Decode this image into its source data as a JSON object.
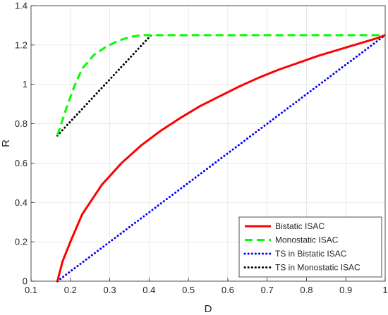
{
  "chart_data": {
    "type": "line",
    "title": "",
    "xlabel": "D",
    "ylabel": "R",
    "xlim": [
      0.1,
      1.0
    ],
    "ylim": [
      0,
      1.4
    ],
    "xticks": [
      0.1,
      0.2,
      0.3,
      0.4,
      0.5,
      0.6,
      0.7,
      0.8,
      0.9,
      1.0
    ],
    "xtick_labels": [
      "0.1",
      "0.2",
      "0.3",
      "0.4",
      "0.5",
      "0.6",
      "0.7",
      "0.8",
      "0.9",
      "1"
    ],
    "yticks": [
      0,
      0.2,
      0.4,
      0.6,
      0.8,
      1.0,
      1.2,
      1.4
    ],
    "ytick_labels": [
      "0",
      "0.2",
      "0.4",
      "0.6",
      "0.8",
      "1",
      "1.2",
      "1.4"
    ],
    "grid": true,
    "legend_position": "bottom-right",
    "series": [
      {
        "name": "Bistatic ISAC",
        "color": "#ff0000",
        "style": "solid",
        "x": [
          0.167,
          0.18,
          0.2,
          0.23,
          0.28,
          0.33,
          0.38,
          0.43,
          0.48,
          0.53,
          0.58,
          0.63,
          0.68,
          0.73,
          0.78,
          0.83,
          0.88,
          0.93,
          0.98,
          1.0
        ],
        "y": [
          0.0,
          0.1,
          0.2,
          0.34,
          0.49,
          0.6,
          0.69,
          0.765,
          0.83,
          0.89,
          0.94,
          0.99,
          1.035,
          1.075,
          1.11,
          1.145,
          1.175,
          1.205,
          1.235,
          1.25
        ]
      },
      {
        "name": "Monostatic ISAC",
        "color": "#00ff00",
        "style": "dashed",
        "x": [
          0.167,
          0.19,
          0.21,
          0.23,
          0.26,
          0.29,
          0.32,
          0.35,
          0.38,
          0.41,
          0.5,
          0.6,
          0.7,
          0.8,
          0.9,
          1.0
        ],
        "y": [
          0.74,
          0.88,
          0.99,
          1.08,
          1.15,
          1.19,
          1.22,
          1.24,
          1.25,
          1.25,
          1.25,
          1.25,
          1.25,
          1.25,
          1.25,
          1.25
        ]
      },
      {
        "name": "TS in Bistatic ISAC",
        "color": "#0000ff",
        "style": "dotted",
        "x": [
          0.167,
          1.0
        ],
        "y": [
          0.0,
          1.25
        ]
      },
      {
        "name": "TS in Monostatic ISAC",
        "color": "#000000",
        "style": "dotted",
        "x": [
          0.167,
          0.405
        ],
        "y": [
          0.74,
          1.25
        ]
      }
    ]
  }
}
